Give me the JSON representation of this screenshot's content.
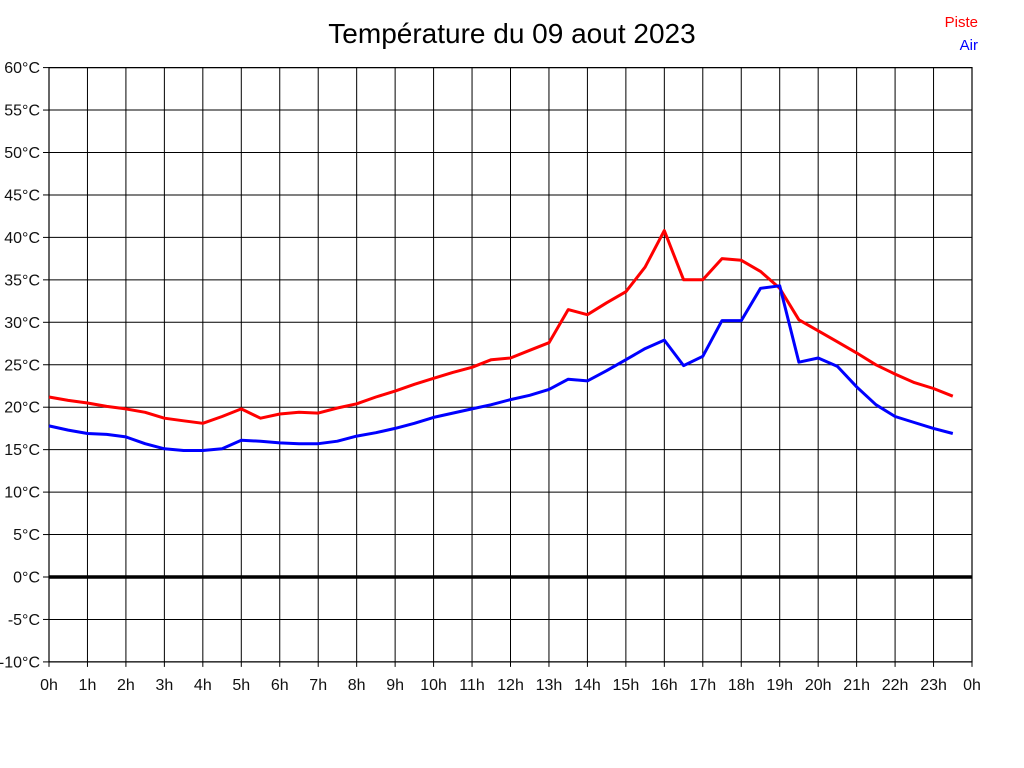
{
  "title": "Température du 09 aout 2023",
  "legend": [
    {
      "label": "Piste",
      "color": "#ff0000"
    },
    {
      "label": "Air",
      "color": "#0000ff"
    }
  ],
  "chart_data": {
    "type": "line",
    "title": "Température du 09 aout 2023",
    "xlabel": "",
    "ylabel": "",
    "ylim": [
      -10,
      60
    ],
    "y_step": 5,
    "x_hours_range": [
      0,
      24
    ],
    "grid": true,
    "zero_line_bold": true,
    "legend_position": "top-right",
    "x_tick_labels": [
      "0h",
      "1h",
      "2h",
      "3h",
      "4h",
      "5h",
      "6h",
      "7h",
      "8h",
      "9h",
      "10h",
      "11h",
      "12h",
      "13h",
      "14h",
      "15h",
      "16h",
      "17h",
      "18h",
      "19h",
      "20h",
      "21h",
      "22h",
      "23h",
      "0h"
    ],
    "y_tick_labels": [
      "60°C",
      "55°C",
      "50°C",
      "45°C",
      "40°C",
      "35°C",
      "30°C",
      "25°C",
      "20°C",
      "15°C",
      "10°C",
      "5°C",
      "0°C",
      "-5°C",
      "-10°C"
    ],
    "x": [
      0,
      0.5,
      1,
      1.5,
      2,
      2.5,
      3,
      3.5,
      4,
      4.5,
      5,
      5.5,
      6,
      6.5,
      7,
      7.5,
      8,
      8.5,
      9,
      9.5,
      10,
      10.5,
      11,
      11.5,
      12,
      12.5,
      13,
      13.5,
      14,
      14.5,
      15,
      15.5,
      16,
      16.5,
      17,
      17.5,
      18,
      18.5,
      19,
      19.5,
      20,
      20.5,
      21,
      21.5,
      22,
      22.5,
      23,
      23.5
    ],
    "series": [
      {
        "name": "Piste",
        "color": "#ff0000",
        "values": [
          21.2,
          20.8,
          20.5,
          20.1,
          19.8,
          19.4,
          18.7,
          18.4,
          18.1,
          18.9,
          19.8,
          18.7,
          19.2,
          19.4,
          19.3,
          19.9,
          20.4,
          21.2,
          21.9,
          22.7,
          23.4,
          24.1,
          24.7,
          25.6,
          25.8,
          26.7,
          27.6,
          31.5,
          30.9,
          32.3,
          33.6,
          36.5,
          40.8,
          35.0,
          35.0,
          37.5,
          37.3,
          36.0,
          34.0,
          30.3,
          29.0,
          27.7,
          26.4,
          25.0,
          23.9,
          22.9,
          22.2,
          21.3
        ]
      },
      {
        "name": "Air",
        "color": "#0000ff",
        "values": [
          17.8,
          17.3,
          16.9,
          16.8,
          16.5,
          15.7,
          15.1,
          14.9,
          14.9,
          15.1,
          16.1,
          16.0,
          15.8,
          15.7,
          15.7,
          16.0,
          16.6,
          17.0,
          17.5,
          18.1,
          18.8,
          19.3,
          19.8,
          20.3,
          20.9,
          21.4,
          22.1,
          23.3,
          23.1,
          24.3,
          25.6,
          26.9,
          27.9,
          24.9,
          26.0,
          30.2,
          30.2,
          34.0,
          34.3,
          25.3,
          25.8,
          24.8,
          22.4,
          20.3,
          18.9,
          18.2,
          17.5,
          16.9
        ]
      }
    ]
  }
}
